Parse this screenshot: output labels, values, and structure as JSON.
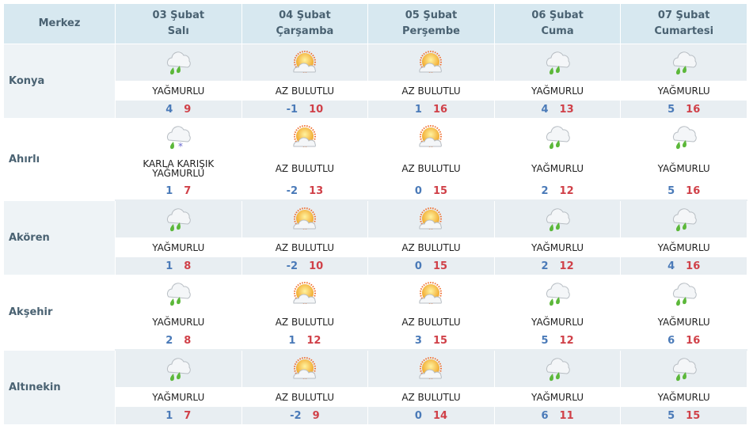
{
  "header": {
    "city_label": "Merkez",
    "days": [
      {
        "date": "03 Şubat",
        "weekday": "Salı"
      },
      {
        "date": "04 Şubat",
        "weekday": "Çarşamba"
      },
      {
        "date": "05 Şubat",
        "weekday": "Perşembe"
      },
      {
        "date": "06 Şubat",
        "weekday": "Cuma"
      },
      {
        "date": "07 Şubat",
        "weekday": "Cumartesi"
      }
    ]
  },
  "colors": {
    "header_bg": "#d7e8f0",
    "low": "#4a7ab8",
    "high": "#d04048",
    "rain_drop": "#5cb83a"
  },
  "rows": [
    {
      "city": "Konya",
      "days": [
        {
          "icon": "rain",
          "desc": "YAĞMURLU",
          "low": "4",
          "high": "9"
        },
        {
          "icon": "sun",
          "desc": "AZ BULUTLU",
          "low": "-1",
          "high": "10"
        },
        {
          "icon": "sun",
          "desc": "AZ BULUTLU",
          "low": "1",
          "high": "16"
        },
        {
          "icon": "rain",
          "desc": "YAĞMURLU",
          "low": "4",
          "high": "13"
        },
        {
          "icon": "rain",
          "desc": "YAĞMURLU",
          "low": "5",
          "high": "16"
        }
      ]
    },
    {
      "city": "Ahırlı",
      "days": [
        {
          "icon": "sleet",
          "desc": "KARLA KARIŞIK YAĞMURLU",
          "low": "1",
          "high": "7"
        },
        {
          "icon": "sun",
          "desc": "AZ BULUTLU",
          "low": "-2",
          "high": "13"
        },
        {
          "icon": "sun",
          "desc": "AZ BULUTLU",
          "low": "0",
          "high": "15"
        },
        {
          "icon": "rain",
          "desc": "YAĞMURLU",
          "low": "2",
          "high": "12"
        },
        {
          "icon": "rain",
          "desc": "YAĞMURLU",
          "low": "5",
          "high": "16"
        }
      ]
    },
    {
      "city": "Akören",
      "days": [
        {
          "icon": "rain",
          "desc": "YAĞMURLU",
          "low": "1",
          "high": "8"
        },
        {
          "icon": "sun",
          "desc": "AZ BULUTLU",
          "low": "-2",
          "high": "10"
        },
        {
          "icon": "sun",
          "desc": "AZ BULUTLU",
          "low": "0",
          "high": "15"
        },
        {
          "icon": "rain",
          "desc": "YAĞMURLU",
          "low": "2",
          "high": "12"
        },
        {
          "icon": "rain",
          "desc": "YAĞMURLU",
          "low": "4",
          "high": "16"
        }
      ]
    },
    {
      "city": "Akşehir",
      "days": [
        {
          "icon": "rain",
          "desc": "YAĞMURLU",
          "low": "2",
          "high": "8"
        },
        {
          "icon": "sun",
          "desc": "AZ BULUTLU",
          "low": "1",
          "high": "12"
        },
        {
          "icon": "sun",
          "desc": "AZ BULUTLU",
          "low": "3",
          "high": "15"
        },
        {
          "icon": "rain",
          "desc": "YAĞMURLU",
          "low": "5",
          "high": "12"
        },
        {
          "icon": "rain",
          "desc": "YAĞMURLU",
          "low": "6",
          "high": "16"
        }
      ]
    },
    {
      "city": "Altınekin",
      "days": [
        {
          "icon": "rain",
          "desc": "YAĞMURLU",
          "low": "1",
          "high": "7"
        },
        {
          "icon": "sun",
          "desc": "AZ BULUTLU",
          "low": "-2",
          "high": "9"
        },
        {
          "icon": "sun",
          "desc": "AZ BULUTLU",
          "low": "0",
          "high": "14"
        },
        {
          "icon": "rain",
          "desc": "YAĞMURLU",
          "low": "6",
          "high": "11"
        },
        {
          "icon": "rain",
          "desc": "YAĞMURLU",
          "low": "5",
          "high": "15"
        }
      ]
    }
  ]
}
